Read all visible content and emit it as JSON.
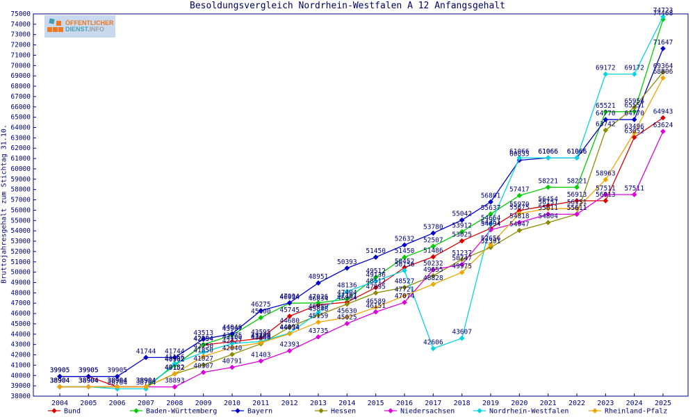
{
  "logo": {
    "line1": "ÖFFENTLICHER",
    "dienst": "DIENST.",
    "info": "INFO"
  },
  "title": "Besoldungsvergleich Nordrhein-Westfalen A 12 Anfangsgehalt",
  "y_axis_label": "Bruttojahresgehalt zum Stichtag 31.10.",
  "axis_color": "#000080",
  "label_color": "#000080",
  "chart_data": {
    "type": "line",
    "title": "Besoldungsvergleich Nordrhein-Westfalen A 12 Anfangsgehalt",
    "xlabel": "",
    "ylabel": "Bruttojahresgehalt zum Stichtag 31.10.",
    "ylim": [
      38000,
      75000
    ],
    "ytick_step": 1000,
    "grid": false,
    "legend_position": "bottom",
    "point_labels": true,
    "x": [
      2004,
      2005,
      2006,
      2007,
      2008,
      2009,
      2010,
      2011,
      2012,
      2013,
      2014,
      2015,
      2016,
      2017,
      2018,
      2019,
      2020,
      2021,
      2022,
      2023,
      2024,
      2025
    ],
    "series": [
      {
        "name": "Bund",
        "color": "#dd0000",
        "values": [
          39905,
          39905,
          38904,
          38904,
          40992,
          42954,
          43275,
          43595,
          45745,
          46834,
          47101,
          48512,
          50452,
          51486,
          53025,
          54251,
          55970,
          56454,
          56913,
          56913,
          63052,
          64943
        ]
      },
      {
        "name": "Baden-Württemberg",
        "color": "#00cc00",
        "values": [
          38904,
          38904,
          38904,
          38904,
          40962,
          42994,
          43907,
          45600,
          46994,
          47026,
          47404,
          49512,
          51450,
          52507,
          53912,
          55637,
          57417,
          58221,
          58221,
          65521,
          65551,
          74468
        ]
      },
      {
        "name": "Bayern",
        "color": "#0000cd",
        "values": [
          39905,
          39905,
          39905,
          41744,
          41744,
          43513,
          44040,
          46275,
          47034,
          48951,
          50393,
          51450,
          52632,
          53780,
          55042,
          56801,
          60835,
          61066,
          61066,
          64770,
          64770,
          71647
        ]
      },
      {
        "name": "Hessen",
        "color": "#8b8b00",
        "values": [
          38904,
          38904,
          38904,
          38904,
          40152,
          41027,
          42040,
          43066,
          44680,
          45848,
          46904,
          47995,
          48527,
          49655,
          51237,
          52391,
          54047,
          54804,
          55611,
          63742,
          65954,
          69364
        ]
      },
      {
        "name": "Niedersachsen",
        "color": "#dd00dd",
        "values": [
          38904,
          38904,
          38904,
          38904,
          38893,
          40307,
          40791,
          41403,
          42393,
          43735,
          45025,
          46151,
          47074,
          50232,
          50747,
          54094,
          54818,
          55611,
          55611,
          57511,
          57511,
          63624
        ]
      },
      {
        "name": "Nordrhein-Westfalen",
        "color": "#00d5e0",
        "values": [
          38904,
          38904,
          38704,
          38704,
          41156,
          42250,
          43100,
          43290,
          44094,
          46089,
          48136,
          49136,
          50156,
          42606,
          43607,
          54664,
          61066,
          61066,
          61066,
          69172,
          69172,
          74723
        ]
      },
      {
        "name": "Rheinland-Pfalz",
        "color": "#eea500",
        "values": [
          38904,
          38904,
          38904,
          38904,
          40182,
          41850,
          42727,
          43168,
          44034,
          45159,
          45630,
          46589,
          47721,
          48828,
          49975,
          52656,
          55675,
          56151,
          56151,
          58963,
          63496,
          68806
        ]
      }
    ]
  }
}
